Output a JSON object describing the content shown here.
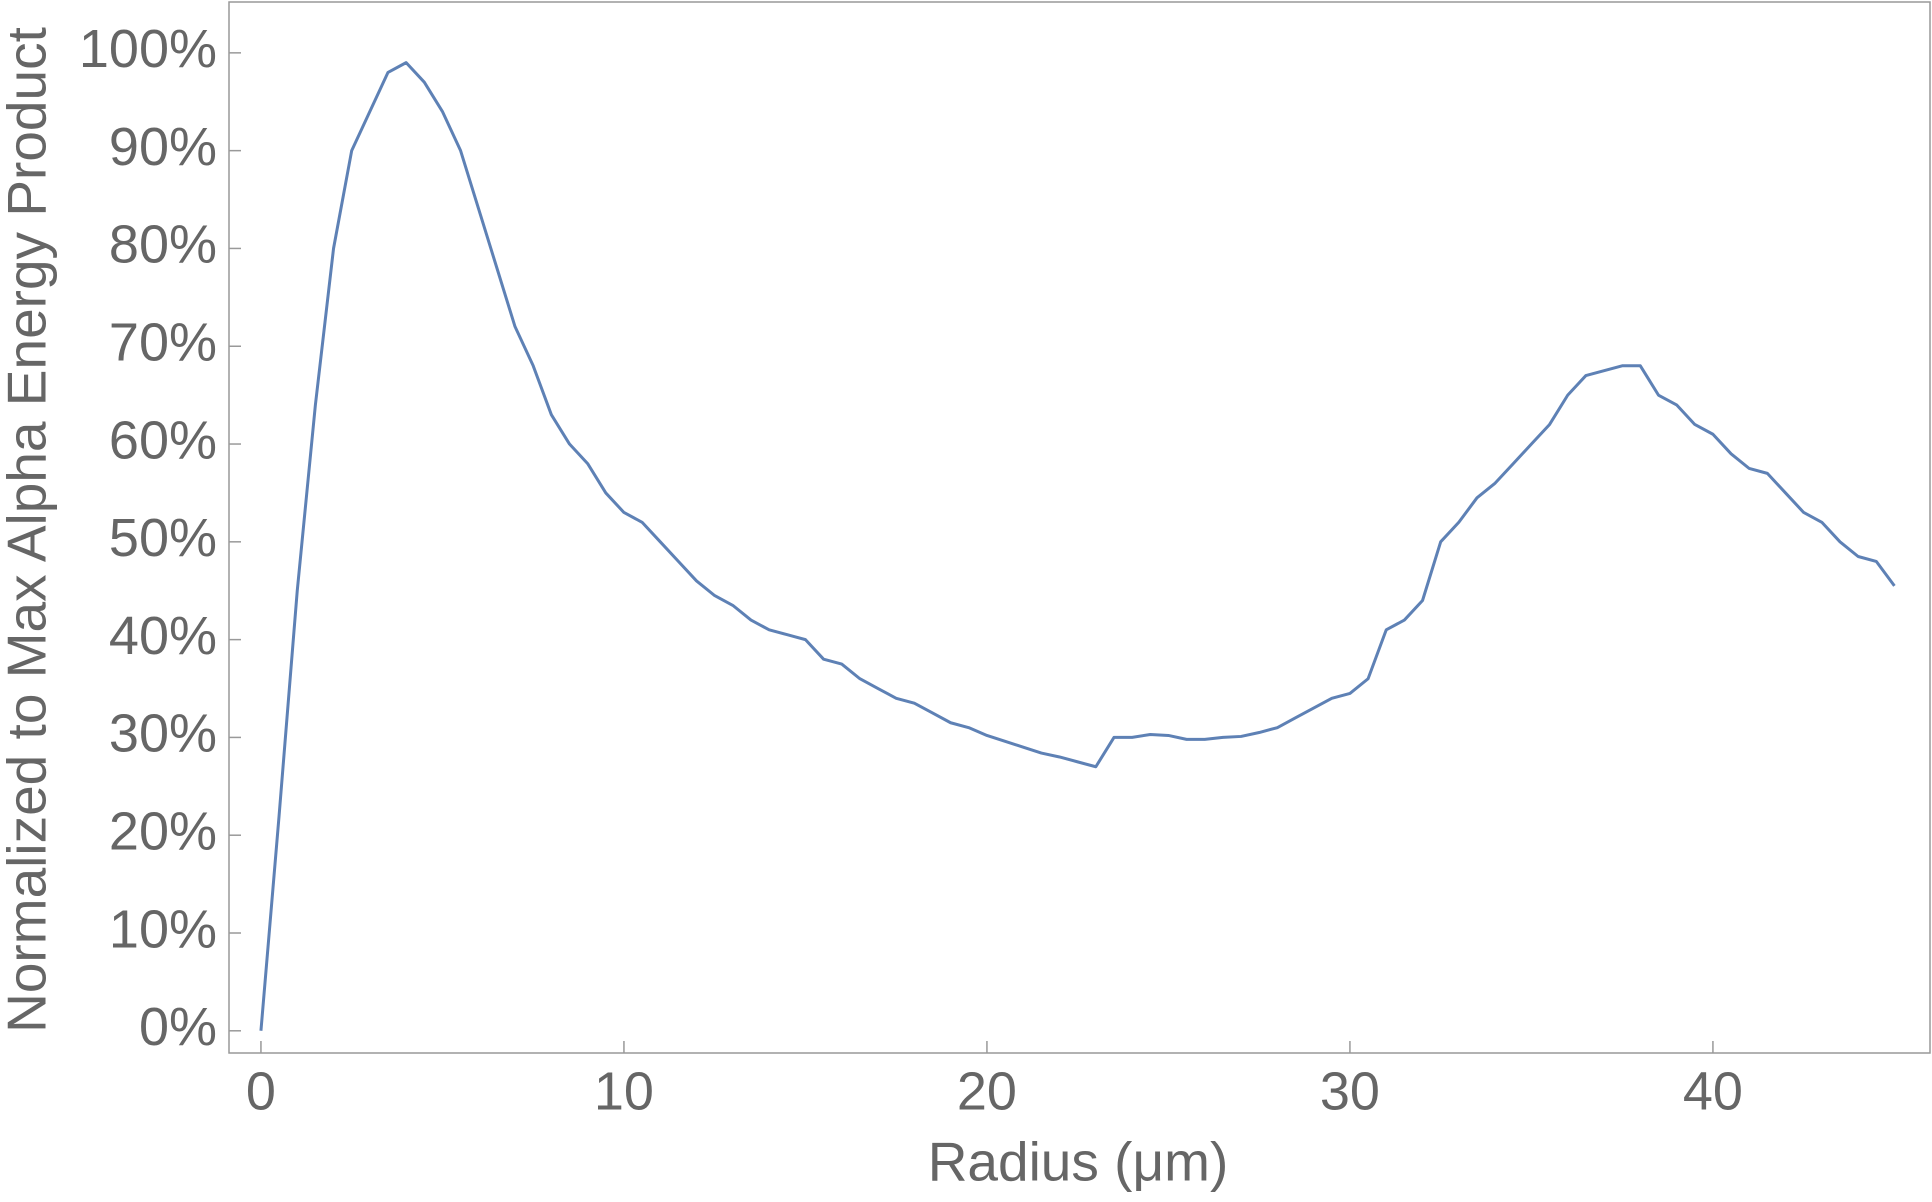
{
  "chart_data": {
    "type": "line",
    "xlabel": "Radius (μm)",
    "ylabel": "Normalized to Max Alpha Energy Product",
    "x": [
      0,
      0.5,
      1,
      1.5,
      2,
      2.5,
      3,
      3.5,
      4,
      4.5,
      5,
      5.5,
      6,
      6.5,
      7,
      7.5,
      8,
      8.5,
      9,
      9.5,
      10,
      10.5,
      11,
      11.5,
      12,
      12.5,
      13,
      13.5,
      14,
      14.5,
      15,
      15.5,
      16,
      16.5,
      17,
      17.5,
      18,
      18.5,
      19,
      19.5,
      20,
      20.5,
      21,
      21.5,
      22,
      22.5,
      23,
      23.5,
      24,
      24.5,
      25,
      25.5,
      26,
      26.5,
      27,
      27.5,
      28,
      28.5,
      29,
      29.5,
      30,
      30.5,
      31,
      31.5,
      32,
      32.5,
      33,
      33.5,
      34,
      34.5,
      35,
      35.5,
      36,
      36.5,
      37,
      37.5,
      38,
      38.5,
      39,
      39.5,
      40,
      40.5,
      41,
      41.5,
      42,
      42.5,
      43,
      43.5,
      44,
      44.5,
      45
    ],
    "series": [
      {
        "color": "#5e81b5",
        "values": [
          0,
          22,
          45,
          64,
          80,
          90,
          94,
          98,
          99,
          97,
          94,
          90,
          84,
          78,
          72,
          68,
          63,
          60,
          58,
          55,
          53,
          52,
          50,
          48,
          46,
          44.5,
          43.5,
          42,
          41,
          40.5,
          40,
          38,
          37.5,
          36,
          35,
          34,
          33.5,
          32.5,
          31.5,
          31,
          30.2,
          29.6,
          29,
          28.4,
          28,
          27.5,
          27,
          30,
          30,
          30.3,
          30.2,
          29.8,
          29.8,
          30,
          30.1,
          30.5,
          31,
          32,
          33,
          34,
          34.5,
          36,
          41,
          42,
          44,
          50,
          52,
          54.5,
          56,
          58,
          60,
          62,
          65,
          67,
          67.5,
          68,
          68,
          65,
          64,
          62,
          61,
          59,
          57.5,
          57,
          55,
          53,
          52,
          50,
          48.5,
          48,
          45.5
        ]
      }
    ],
    "xlim": [
      -0.88,
      45.98
    ],
    "ylim": [
      -2.27,
      105.2
    ],
    "xticks": [
      0,
      10,
      20,
      30,
      40
    ],
    "yticks": [
      {
        "value": 0,
        "label": "0%"
      },
      {
        "value": 10,
        "label": "10%"
      },
      {
        "value": 20,
        "label": "20%"
      },
      {
        "value": 30,
        "label": "30%"
      },
      {
        "value": 40,
        "label": "40%"
      },
      {
        "value": 50,
        "label": "50%"
      },
      {
        "value": 60,
        "label": "60%"
      },
      {
        "value": 70,
        "label": "70%"
      },
      {
        "value": 80,
        "label": "80%"
      },
      {
        "value": 90,
        "label": "90%"
      },
      {
        "value": 100,
        "label": "100%"
      }
    ]
  }
}
